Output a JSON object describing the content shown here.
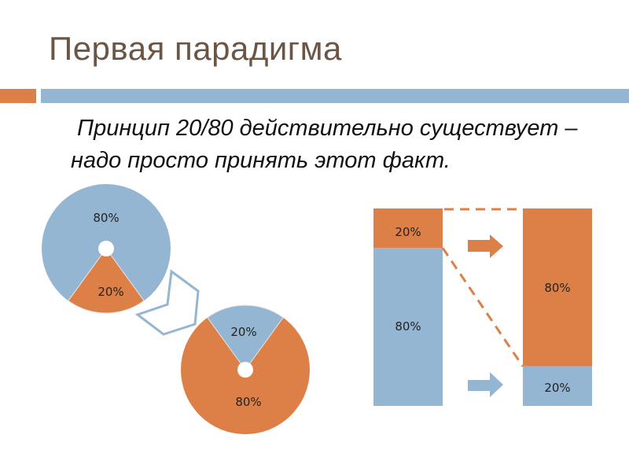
{
  "slide": {
    "title": "Первая парадигма",
    "body": " Принцип 20/80 действительно существует – надо просто принять этот факт."
  },
  "colors": {
    "orange": "#dd8047",
    "blue": "#94b6d2"
  },
  "pie_before": {
    "blue_label": "80%",
    "orange_label": "20%",
    "blue_percent": 80,
    "orange_percent": 20
  },
  "pie_after": {
    "blue_label": "20%",
    "orange_label": "80%",
    "blue_percent": 20,
    "orange_percent": 80
  },
  "bar_before": {
    "orange_label": "20%",
    "blue_label": "80%",
    "orange_percent": 20,
    "blue_percent": 80
  },
  "bar_after": {
    "orange_label": "80%",
    "blue_label": "20%",
    "orange_percent": 80,
    "blue_percent": 20
  }
}
